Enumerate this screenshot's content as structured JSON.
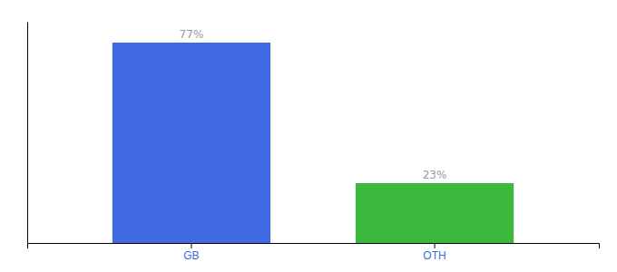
{
  "chart_data": {
    "type": "bar",
    "categories": [
      "GB",
      "OTH"
    ],
    "values": [
      77,
      23
    ],
    "value_labels": [
      "77%",
      "23%"
    ],
    "colors": [
      "#4169e1",
      "#3cb83c"
    ],
    "ylim": [
      0,
      85
    ],
    "data_labels": true,
    "tick_labels": "x",
    "grid": false
  }
}
